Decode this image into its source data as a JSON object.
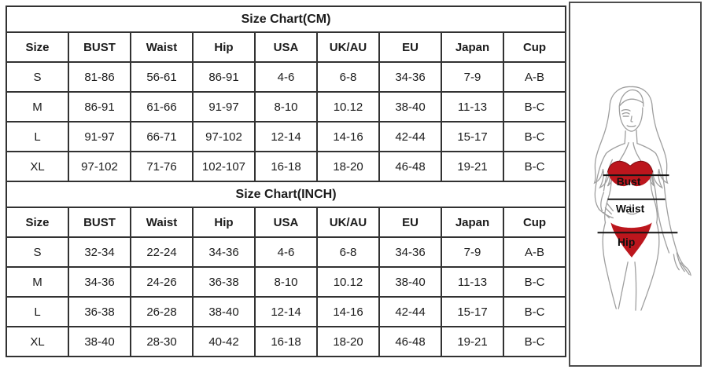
{
  "page": {
    "background": "#ffffff"
  },
  "size_chart": {
    "tables": [
      {
        "id": "cm",
        "title": "Size Chart(CM)",
        "headers": [
          "Size",
          "BUST",
          "Waist",
          "Hip",
          "USA",
          "UK/AU",
          "EU",
          "Japan",
          "Cup"
        ],
        "rows": [
          [
            "S",
            "81-86",
            "56-61",
            "86-91",
            "4-6",
            "6-8",
            "34-36",
            "7-9",
            "A-B"
          ],
          [
            "M",
            "86-91",
            "61-66",
            "91-97",
            "8-10",
            "10.12",
            "38-40",
            "11-13",
            "B-C"
          ],
          [
            "L",
            "91-97",
            "66-71",
            "97-102",
            "12-14",
            "14-16",
            "42-44",
            "15-17",
            "B-C"
          ],
          [
            "XL",
            "97-102",
            "71-76",
            "102-107",
            "16-18",
            "18-20",
            "46-48",
            "19-21",
            "B-C"
          ]
        ]
      },
      {
        "id": "inch",
        "title": "Size Chart(INCH)",
        "headers": [
          "Size",
          "BUST",
          "Waist",
          "Hip",
          "USA",
          "UK/AU",
          "EU",
          "Japan",
          "Cup"
        ],
        "rows": [
          [
            "S",
            "32-34",
            "22-24",
            "34-36",
            "4-6",
            "6-8",
            "34-36",
            "7-9",
            "A-B"
          ],
          [
            "M",
            "34-36",
            "24-26",
            "36-38",
            "8-10",
            "10.12",
            "38-40",
            "11-13",
            "B-C"
          ],
          [
            "L",
            "36-38",
            "26-28",
            "38-40",
            "12-14",
            "14-16",
            "42-44",
            "15-17",
            "B-C"
          ],
          [
            "XL",
            "38-40",
            "28-30",
            "40-42",
            "16-18",
            "18-20",
            "46-48",
            "19-21",
            "B-C"
          ]
        ]
      }
    ]
  },
  "figure": {
    "labels": {
      "bust": "Bust",
      "waist": "Waist",
      "hip": "Hip"
    },
    "colors": {
      "bikini": "#bc161d",
      "bikini_edge": "#7e0d12",
      "outline": "#9e9e9e",
      "measure_line": "#151515"
    }
  },
  "colors": {
    "table_border": "#323232",
    "panel_border": "#4d4d4d",
    "text": "#1b1b1b"
  }
}
